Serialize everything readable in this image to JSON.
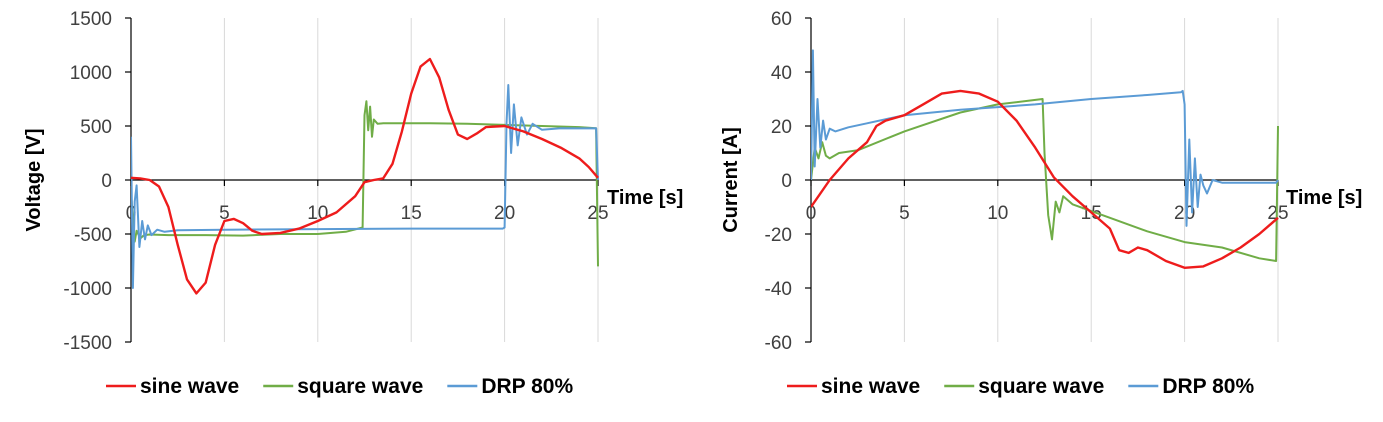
{
  "charts": [
    {
      "type": "line",
      "ylabel": "Voltage [V]",
      "xlabel": "Time [s]",
      "xlim": [
        0,
        25
      ],
      "ylim": [
        -1500,
        1500
      ],
      "x_ticks": [
        "0",
        "5",
        "10",
        "15",
        "20",
        "25"
      ],
      "y_ticks": [
        "1500",
        "1000",
        "500",
        "0",
        "-500",
        "-1000",
        "-1500"
      ],
      "grid": "vertical",
      "legend_position": "bottom",
      "series": [
        {
          "name": "sine wave",
          "color": "#ee1c1c",
          "x": [
            0,
            0.5,
            1.0,
            1.5,
            2.0,
            2.5,
            3.0,
            3.5,
            4.0,
            4.5,
            5.0,
            5.5,
            6.0,
            6.5,
            7.0,
            8.0,
            9.0,
            10.0,
            11.0,
            12.0,
            12.5,
            13.0,
            13.5,
            14.0,
            14.5,
            15.0,
            15.5,
            16.0,
            16.5,
            17.0,
            17.5,
            18.0,
            18.5,
            19.0,
            20.0,
            21.0,
            22.0,
            23.0,
            24.0,
            24.5,
            25.0
          ],
          "y": [
            20,
            15,
            0,
            -60,
            -250,
            -600,
            -920,
            -1050,
            -950,
            -600,
            -380,
            -360,
            -400,
            -470,
            -500,
            -490,
            -450,
            -380,
            -300,
            -150,
            -20,
            0,
            15,
            150,
            450,
            800,
            1050,
            1120,
            950,
            650,
            420,
            380,
            430,
            490,
            500,
            450,
            380,
            300,
            200,
            120,
            20
          ]
        },
        {
          "name": "square wave",
          "color": "#70ad47",
          "x": [
            0,
            0.1,
            0.2,
            0.3,
            0.5,
            0.7,
            1.0,
            2,
            4,
            6,
            8,
            10,
            11.5,
            12.4,
            12.5,
            12.6,
            12.7,
            12.8,
            12.9,
            13.0,
            13.2,
            13.5,
            14,
            16,
            18,
            20,
            22,
            24,
            24.9,
            25.0
          ],
          "y": [
            -100,
            -380,
            -570,
            -470,
            -540,
            -510,
            -505,
            -510,
            -510,
            -515,
            -500,
            -500,
            -480,
            -440,
            600,
            730,
            460,
            680,
            400,
            560,
            520,
            525,
            525,
            525,
            520,
            510,
            500,
            490,
            480,
            -800
          ]
        },
        {
          "name": "DRP 80%",
          "color": "#5b9bd5",
          "x": [
            0,
            0.1,
            0.2,
            0.3,
            0.45,
            0.6,
            0.75,
            0.9,
            1.1,
            1.4,
            1.8,
            2.5,
            5,
            10,
            15,
            19.9,
            20.0,
            20.1,
            20.2,
            20.35,
            20.5,
            20.7,
            20.9,
            21.2,
            21.5,
            22,
            23,
            24,
            24.9,
            25.0
          ],
          "y": [
            400,
            -1000,
            -200,
            -50,
            -620,
            -380,
            -550,
            -420,
            -510,
            -460,
            -480,
            -465,
            -460,
            -455,
            -450,
            -450,
            -440,
            520,
            880,
            250,
            700,
            320,
            580,
            420,
            520,
            465,
            480,
            478,
            480,
            0
          ]
        }
      ]
    },
    {
      "type": "line",
      "ylabel": "Current [A]",
      "xlabel": "Time [s]",
      "xlim": [
        0,
        25
      ],
      "ylim": [
        -60,
        60
      ],
      "x_ticks": [
        "0",
        "5",
        "10",
        "15",
        "20",
        "25"
      ],
      "y_ticks": [
        "60",
        "40",
        "20",
        "0",
        "-20",
        "-40",
        "-60"
      ],
      "grid": "vertical",
      "legend_position": "bottom",
      "series": [
        {
          "name": "sine wave",
          "color": "#ee1c1c",
          "x": [
            0,
            1,
            2,
            3,
            3.5,
            4,
            5,
            6,
            7,
            8,
            9,
            10,
            11,
            12,
            13,
            14,
            15,
            16,
            16.5,
            17,
            17.5,
            18,
            19,
            20,
            21,
            22,
            23,
            24,
            25
          ],
          "y": [
            -10,
            0,
            8,
            14,
            20,
            22,
            24,
            28,
            32,
            33,
            32,
            29,
            22,
            12,
            1,
            -6,
            -12,
            -18,
            -26,
            -27,
            -25,
            -26,
            -30,
            -32.5,
            -32,
            -29,
            -25,
            -20,
            -14
          ]
        },
        {
          "name": "square wave",
          "color": "#70ad47",
          "x": [
            0,
            0.2,
            0.4,
            0.6,
            0.8,
            1.0,
            1.5,
            2.5,
            5,
            8,
            10,
            12.4,
            12.5,
            12.7,
            12.9,
            13.1,
            13.3,
            13.5,
            14,
            16,
            18,
            20,
            22,
            24,
            24.9,
            25.0
          ],
          "y": [
            0,
            12,
            8,
            14,
            9,
            8,
            10,
            11,
            18,
            25,
            28,
            30,
            10,
            -13,
            -22,
            -8,
            -12,
            -6,
            -9,
            -14,
            -19,
            -23,
            -25,
            -29,
            -30,
            20
          ]
        },
        {
          "name": "DRP 80%",
          "color": "#5b9bd5",
          "x": [
            0,
            0.1,
            0.2,
            0.35,
            0.5,
            0.65,
            0.8,
            1.0,
            1.3,
            2,
            3,
            5,
            8,
            10,
            12,
            15,
            18,
            19.8,
            19.9,
            20.0,
            20.1,
            20.25,
            20.4,
            20.55,
            20.7,
            20.85,
            21.0,
            21.2,
            21.5,
            22,
            23,
            24,
            24.9,
            25.0
          ],
          "y": [
            0,
            48,
            5,
            30,
            12,
            22,
            15,
            19,
            18,
            19.5,
            21,
            24,
            26,
            27,
            28,
            30,
            31.5,
            32.5,
            33,
            28,
            -17,
            15,
            -12,
            8,
            -10,
            2,
            -2,
            -5,
            0,
            -1,
            -1,
            -1,
            -1,
            0
          ]
        }
      ]
    }
  ]
}
